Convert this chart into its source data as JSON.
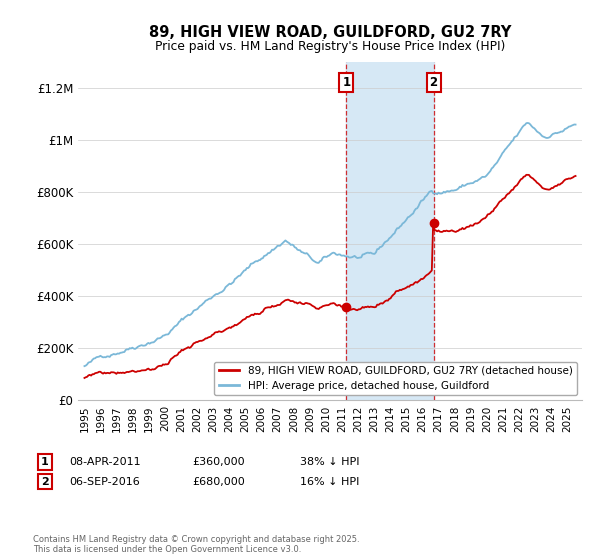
{
  "title": "89, HIGH VIEW ROAD, GUILDFORD, GU2 7RY",
  "subtitle": "Price paid vs. HM Land Registry's House Price Index (HPI)",
  "hpi_label": "HPI: Average price, detached house, Guildford",
  "property_label": "89, HIGH VIEW ROAD, GUILDFORD, GU2 7RY (detached house)",
  "hpi_color": "#7bb8d8",
  "property_color": "#cc0000",
  "purchase1_year": 2011.27,
  "purchase1_price": 360000,
  "purchase2_year": 2016.68,
  "purchase2_price": 680000,
  "shade_color": "#d6e8f5",
  "vline_color": "#cc0000",
  "ylim": [
    0,
    1300000
  ],
  "xlim_start": 1994.6,
  "xlim_end": 2025.9,
  "ytick_vals": [
    0,
    200000,
    400000,
    600000,
    800000,
    1000000,
    1200000
  ],
  "ytick_labels": [
    "£0",
    "£200K",
    "£400K",
    "£600K",
    "£800K",
    "£1M",
    "£1.2M"
  ],
  "footer_line1": "Contains HM Land Registry data © Crown copyright and database right 2025.",
  "footer_line2": "This data is licensed under the Open Government Licence v3.0.",
  "ann1_date": "08-APR-2011",
  "ann1_price": "£360,000",
  "ann1_hpi": "38% ↓ HPI",
  "ann2_date": "06-SEP-2016",
  "ann2_price": "£680,000",
  "ann2_hpi": "16% ↓ HPI"
}
